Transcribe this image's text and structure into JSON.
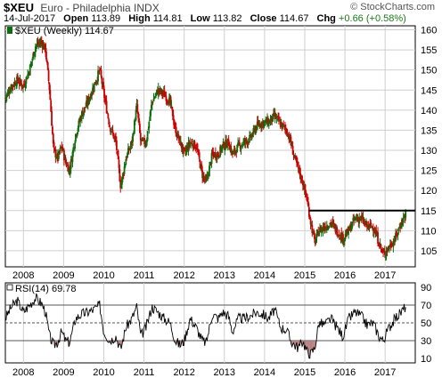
{
  "header": {
    "symbol": "$XEU",
    "name": "Euro - Philadelphia INDX",
    "date": "14-Jul-2017",
    "open_label": "Open",
    "open": "113.89",
    "high_label": "High",
    "high": "114.81",
    "low_label": "Low",
    "low": "113.82",
    "close_label": "Close",
    "close": "114.67",
    "chg_label": "Chg",
    "chg": "+0.66 (+0.58%)",
    "credit": "© StockCharts.com"
  },
  "colors": {
    "up": "#0d6e0d",
    "down": "#cc0000",
    "rsi_line": "#000000",
    "rsi_fill": "#b07a7a",
    "grid": "#cfcfcf"
  },
  "chart_data": [
    {
      "type": "candlestick",
      "legend": "$XEU (Weekly) 114.67",
      "x_ticks": [
        "2008",
        "2009",
        "2010",
        "2011",
        "2012",
        "2013",
        "2014",
        "2015",
        "2016",
        "2017"
      ],
      "xlim": [
        2007.55,
        2017.75
      ],
      "ylim": [
        101,
        161
      ],
      "y_ticks": [
        105,
        110,
        115,
        120,
        125,
        130,
        135,
        140,
        145,
        150,
        155,
        160
      ],
      "grid": true,
      "horizontal_line": {
        "y": 115,
        "x_start": 2015.1,
        "x_end": 2017.75
      },
      "close_series": [
        [
          2007.55,
          143
        ],
        [
          2007.7,
          146
        ],
        [
          2007.85,
          147.5
        ],
        [
          2008.0,
          146
        ],
        [
          2008.15,
          150
        ],
        [
          2008.3,
          156
        ],
        [
          2008.45,
          157
        ],
        [
          2008.55,
          155
        ],
        [
          2008.65,
          145
        ],
        [
          2008.75,
          130
        ],
        [
          2008.85,
          128
        ],
        [
          2008.95,
          131
        ],
        [
          2009.05,
          127
        ],
        [
          2009.15,
          125
        ],
        [
          2009.3,
          134
        ],
        [
          2009.45,
          139
        ],
        [
          2009.6,
          142
        ],
        [
          2009.75,
          146
        ],
        [
          2009.9,
          150
        ],
        [
          2010.0,
          144
        ],
        [
          2010.15,
          136
        ],
        [
          2010.3,
          132
        ],
        [
          2010.42,
          121
        ],
        [
          2010.55,
          128
        ],
        [
          2010.7,
          132
        ],
        [
          2010.82,
          141
        ],
        [
          2010.92,
          132
        ],
        [
          2011.05,
          132
        ],
        [
          2011.2,
          142
        ],
        [
          2011.35,
          145
        ],
        [
          2011.5,
          144
        ],
        [
          2011.65,
          142
        ],
        [
          2011.78,
          135
        ],
        [
          2011.9,
          132
        ],
        [
          2012.0,
          129
        ],
        [
          2012.15,
          132
        ],
        [
          2012.3,
          131
        ],
        [
          2012.45,
          124
        ],
        [
          2012.55,
          122
        ],
        [
          2012.7,
          129
        ],
        [
          2012.85,
          129
        ],
        [
          2012.95,
          131
        ],
        [
          2013.1,
          132
        ],
        [
          2013.2,
          129
        ],
        [
          2013.35,
          131
        ],
        [
          2013.5,
          132
        ],
        [
          2013.65,
          133
        ],
        [
          2013.8,
          136
        ],
        [
          2013.95,
          137
        ],
        [
          2014.1,
          137
        ],
        [
          2014.25,
          138.5
        ],
        [
          2014.4,
          136.5
        ],
        [
          2014.55,
          135
        ],
        [
          2014.65,
          132
        ],
        [
          2014.75,
          128
        ],
        [
          2014.85,
          125
        ],
        [
          2014.95,
          122
        ],
        [
          2015.05,
          118
        ],
        [
          2015.15,
          112
        ],
        [
          2015.25,
          107
        ],
        [
          2015.35,
          110
        ],
        [
          2015.5,
          111
        ],
        [
          2015.65,
          112
        ],
        [
          2015.8,
          110
        ],
        [
          2015.95,
          108
        ],
        [
          2016.1,
          110
        ],
        [
          2016.25,
          113
        ],
        [
          2016.4,
          113
        ],
        [
          2016.55,
          111
        ],
        [
          2016.7,
          111
        ],
        [
          2016.85,
          107
        ],
        [
          2016.95,
          104
        ],
        [
          2017.1,
          106
        ],
        [
          2017.25,
          108
        ],
        [
          2017.4,
          112
        ],
        [
          2017.53,
          114.67
        ]
      ]
    },
    {
      "type": "line",
      "legend": "RSI(14) 69.78",
      "x_ticks": [
        "2008",
        "2009",
        "2010",
        "2011",
        "2012",
        "2013",
        "2014",
        "2015",
        "2016",
        "2017"
      ],
      "xlim": [
        2007.55,
        2017.75
      ],
      "ylim": [
        5,
        95
      ],
      "y_ticks": [
        10,
        30,
        50,
        70,
        90
      ],
      "reference_lines": [
        30,
        50,
        70
      ],
      "fill_below": 30,
      "values": [
        [
          2007.55,
          55
        ],
        [
          2007.7,
          68
        ],
        [
          2007.85,
          75
        ],
        [
          2008.0,
          62
        ],
        [
          2008.15,
          70
        ],
        [
          2008.3,
          78
        ],
        [
          2008.45,
          72
        ],
        [
          2008.55,
          62
        ],
        [
          2008.65,
          35
        ],
        [
          2008.75,
          25
        ],
        [
          2008.85,
          28
        ],
        [
          2008.95,
          40
        ],
        [
          2009.05,
          30
        ],
        [
          2009.15,
          28
        ],
        [
          2009.3,
          55
        ],
        [
          2009.45,
          60
        ],
        [
          2009.6,
          62
        ],
        [
          2009.75,
          65
        ],
        [
          2009.9,
          70
        ],
        [
          2010.0,
          40
        ],
        [
          2010.15,
          30
        ],
        [
          2010.3,
          35
        ],
        [
          2010.42,
          20
        ],
        [
          2010.55,
          45
        ],
        [
          2010.7,
          55
        ],
        [
          2010.82,
          68
        ],
        [
          2010.92,
          35
        ],
        [
          2011.05,
          45
        ],
        [
          2011.2,
          68
        ],
        [
          2011.35,
          62
        ],
        [
          2011.5,
          55
        ],
        [
          2011.65,
          50
        ],
        [
          2011.78,
          30
        ],
        [
          2011.9,
          25
        ],
        [
          2012.0,
          30
        ],
        [
          2012.15,
          55
        ],
        [
          2012.3,
          45
        ],
        [
          2012.45,
          30
        ],
        [
          2012.55,
          28
        ],
        [
          2012.7,
          60
        ],
        [
          2012.85,
          55
        ],
        [
          2012.95,
          62
        ],
        [
          2013.1,
          58
        ],
        [
          2013.2,
          40
        ],
        [
          2013.35,
          55
        ],
        [
          2013.5,
          55
        ],
        [
          2013.65,
          58
        ],
        [
          2013.8,
          62
        ],
        [
          2013.95,
          60
        ],
        [
          2014.1,
          55
        ],
        [
          2014.25,
          65
        ],
        [
          2014.4,
          45
        ],
        [
          2014.55,
          42
        ],
        [
          2014.65,
          30
        ],
        [
          2014.75,
          25
        ],
        [
          2014.85,
          22
        ],
        [
          2014.95,
          30
        ],
        [
          2015.05,
          18
        ],
        [
          2015.15,
          15
        ],
        [
          2015.25,
          22
        ],
        [
          2015.35,
          50
        ],
        [
          2015.5,
          48
        ],
        [
          2015.65,
          55
        ],
        [
          2015.8,
          45
        ],
        [
          2015.95,
          35
        ],
        [
          2016.1,
          55
        ],
        [
          2016.25,
          62
        ],
        [
          2016.4,
          58
        ],
        [
          2016.55,
          48
        ],
        [
          2016.7,
          50
        ],
        [
          2016.85,
          35
        ],
        [
          2016.95,
          30
        ],
        [
          2017.1,
          45
        ],
        [
          2017.25,
          55
        ],
        [
          2017.4,
          62
        ],
        [
          2017.53,
          69.78
        ]
      ]
    }
  ]
}
